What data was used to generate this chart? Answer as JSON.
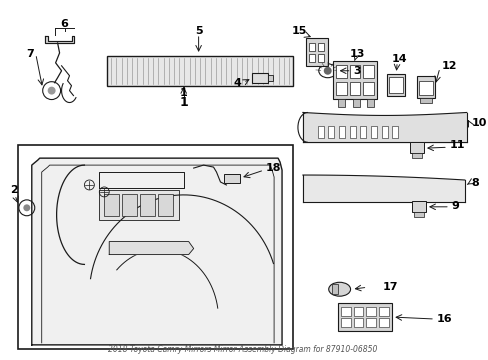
{
  "title": "2018 Toyota Camry Mirrors Mirror Assembly Diagram for 87910-06850",
  "bg_color": "#ffffff",
  "line_color": "#1a1a1a",
  "text_color": "#000000",
  "fig_width": 4.89,
  "fig_height": 3.6,
  "dpi": 100
}
